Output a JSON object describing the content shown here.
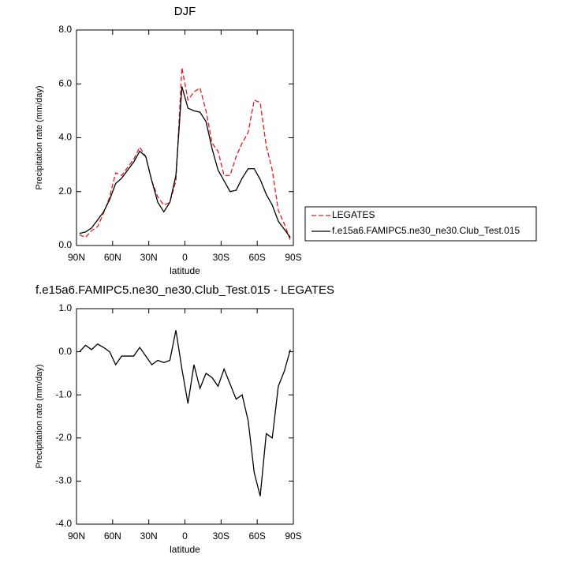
{
  "chart_data": [
    {
      "type": "line",
      "title": "DJF",
      "xlabel": "latitude",
      "ylabel": "Precipitation rate (mm/day)",
      "x": [
        87.5,
        82.5,
        77.5,
        72.5,
        67.5,
        62.5,
        57.5,
        52.5,
        47.5,
        42.5,
        37.5,
        32.5,
        27.5,
        22.5,
        17.5,
        12.5,
        7.5,
        2.5,
        -2.5,
        -7.5,
        -12.5,
        -17.5,
        -22.5,
        -27.5,
        -32.5,
        -37.5,
        -42.5,
        -47.5,
        -52.5,
        -57.5,
        -62.5,
        -67.5,
        -72.5,
        -77.5,
        -82.5,
        -87.5
      ],
      "series": [
        {
          "name": "LEGATES",
          "color": "#e41a1c",
          "dashed": true,
          "values": [
            0.4,
            0.3,
            0.55,
            0.7,
            1.2,
            1.8,
            2.7,
            2.6,
            2.9,
            3.2,
            3.65,
            3.3,
            2.4,
            1.8,
            1.5,
            1.6,
            2.4,
            6.6,
            5.4,
            5.7,
            5.85,
            5.0,
            3.8,
            3.5,
            2.6,
            2.6,
            3.3,
            3.8,
            4.2,
            5.4,
            5.3,
            3.7,
            2.8,
            1.3,
            0.8,
            0.2
          ]
        },
        {
          "name": "f.e15a6.FAMIPC5.ne30_ne30.Club_Test.015",
          "color": "#000000",
          "dashed": false,
          "values": [
            0.45,
            0.5,
            0.65,
            0.95,
            1.25,
            1.7,
            2.3,
            2.5,
            2.8,
            3.1,
            3.5,
            3.3,
            2.4,
            1.6,
            1.25,
            1.6,
            2.6,
            5.9,
            5.1,
            5.0,
            4.95,
            4.6,
            3.6,
            2.8,
            2.4,
            2.0,
            2.05,
            2.5,
            2.85,
            2.85,
            2.45,
            1.9,
            1.5,
            0.9,
            0.6,
            0.3
          ]
        }
      ],
      "xlim": [
        90,
        -90
      ],
      "xticks": [
        {
          "value": 90,
          "label": "90N"
        },
        {
          "value": 60,
          "label": "60N"
        },
        {
          "value": 30,
          "label": "30N"
        },
        0,
        {
          "value": -30,
          "label": "30S"
        },
        {
          "value": -60,
          "label": "60S"
        },
        {
          "value": -90,
          "label": "90S"
        }
      ],
      "ylim": [
        0,
        8
      ],
      "yticks": [
        {
          "value": 0,
          "label": "0.0"
        },
        {
          "value": 2,
          "label": "2.0"
        },
        {
          "value": 4,
          "label": "4.0"
        },
        {
          "value": 6,
          "label": "6.0"
        },
        {
          "value": 8,
          "label": "8.0"
        }
      ],
      "legend": "right"
    },
    {
      "type": "line",
      "title": "f.e15a6.FAMIPC5.ne30_ne30.Club_Test.015 - LEGATES",
      "xlabel": "latitude",
      "ylabel": "Precipitation rate (mm/day)",
      "x": [
        87.5,
        82.5,
        77.5,
        72.5,
        67.5,
        62.5,
        57.5,
        52.5,
        47.5,
        42.5,
        37.5,
        32.5,
        27.5,
        22.5,
        17.5,
        12.5,
        7.5,
        2.5,
        -2.5,
        -7.5,
        -12.5,
        -17.5,
        -22.5,
        -27.5,
        -32.5,
        -37.5,
        -42.5,
        -47.5,
        -52.5,
        -57.5,
        -62.5,
        -67.5,
        -72.5,
        -77.5,
        -82.5,
        -87.5
      ],
      "series": [
        {
          "color": "#000000",
          "dashed": false,
          "values": [
            0.0,
            0.15,
            0.05,
            0.18,
            0.1,
            0.0,
            -0.3,
            -0.1,
            -0.1,
            -0.1,
            0.1,
            -0.1,
            -0.3,
            -0.2,
            -0.25,
            -0.2,
            0.5,
            -0.4,
            -1.2,
            -0.3,
            -0.85,
            -0.5,
            -0.6,
            -0.8,
            -0.4,
            -0.75,
            -1.1,
            -1.0,
            -1.6,
            -2.8,
            -3.35,
            -1.9,
            -2.0,
            -0.8,
            -0.45,
            0.05
          ]
        }
      ],
      "xlim": [
        90,
        -90
      ],
      "xticks": [
        {
          "value": 90,
          "label": "90N"
        },
        {
          "value": 60,
          "label": "60N"
        },
        {
          "value": 30,
          "label": "30N"
        },
        0,
        {
          "value": -30,
          "label": "30S"
        },
        {
          "value": -60,
          "label": "60S"
        },
        {
          "value": -90,
          "label": "90S"
        }
      ],
      "ylim": [
        -4,
        1
      ],
      "yticks": [
        {
          "value": -4,
          "label": "-4.0"
        },
        {
          "value": -3,
          "label": "-3.0"
        },
        {
          "value": -2,
          "label": "-2.0"
        },
        {
          "value": -1,
          "label": "-1.0"
        },
        {
          "value": 0,
          "label": "0.0"
        },
        {
          "value": 1,
          "label": "1.0"
        }
      ]
    }
  ]
}
